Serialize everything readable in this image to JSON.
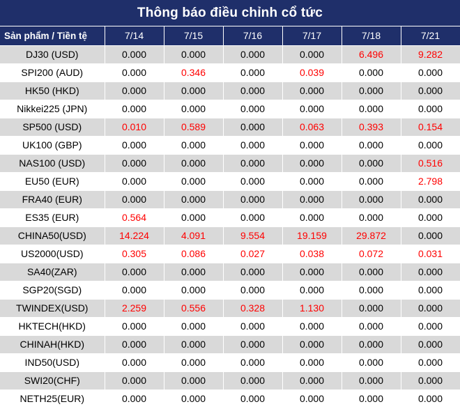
{
  "title": "Thông báo điều chỉnh cổ tức",
  "header": {
    "product_label": "Sản phẩm / Tiền tệ",
    "dates": [
      "7/14",
      "7/15",
      "7/16",
      "7/17",
      "7/18",
      "7/21"
    ]
  },
  "colors": {
    "header_bg": "#1f2f6a",
    "positive": "#ff0000",
    "stripe": "#d9d9d9"
  },
  "rows": [
    {
      "product": "DJ30 (USD)",
      "values": [
        "0.000",
        "0.000",
        "0.000",
        "0.000",
        "6.496",
        "9.282"
      ]
    },
    {
      "product": "SPI200 (AUD)",
      "values": [
        "0.000",
        "0.346",
        "0.000",
        "0.039",
        "0.000",
        "0.000"
      ]
    },
    {
      "product": "HK50 (HKD)",
      "values": [
        "0.000",
        "0.000",
        "0.000",
        "0.000",
        "0.000",
        "0.000"
      ]
    },
    {
      "product": "Nikkei225 (JPN)",
      "values": [
        "0.000",
        "0.000",
        "0.000",
        "0.000",
        "0.000",
        "0.000"
      ]
    },
    {
      "product": "SP500 (USD)",
      "values": [
        "0.010",
        "0.589",
        "0.000",
        "0.063",
        "0.393",
        "0.154"
      ]
    },
    {
      "product": "UK100 (GBP)",
      "values": [
        "0.000",
        "0.000",
        "0.000",
        "0.000",
        "0.000",
        "0.000"
      ]
    },
    {
      "product": "NAS100 (USD)",
      "values": [
        "0.000",
        "0.000",
        "0.000",
        "0.000",
        "0.000",
        "0.516"
      ]
    },
    {
      "product": "EU50 (EUR)",
      "values": [
        "0.000",
        "0.000",
        "0.000",
        "0.000",
        "0.000",
        "2.798"
      ]
    },
    {
      "product": "FRA40 (EUR)",
      "values": [
        "0.000",
        "0.000",
        "0.000",
        "0.000",
        "0.000",
        "0.000"
      ]
    },
    {
      "product": "ES35 (EUR)",
      "values": [
        "0.564",
        "0.000",
        "0.000",
        "0.000",
        "0.000",
        "0.000"
      ]
    },
    {
      "product": "CHINA50(USD)",
      "values": [
        "14.224",
        "4.091",
        "9.554",
        "19.159",
        "29.872",
        "0.000"
      ]
    },
    {
      "product": "US2000(USD)",
      "values": [
        "0.305",
        "0.086",
        "0.027",
        "0.038",
        "0.072",
        "0.031"
      ]
    },
    {
      "product": "SA40(ZAR)",
      "values": [
        "0.000",
        "0.000",
        "0.000",
        "0.000",
        "0.000",
        "0.000"
      ]
    },
    {
      "product": "SGP20(SGD)",
      "values": [
        "0.000",
        "0.000",
        "0.000",
        "0.000",
        "0.000",
        "0.000"
      ]
    },
    {
      "product": "TWINDEX(USD)",
      "values": [
        "2.259",
        "0.556",
        "0.328",
        "1.130",
        "0.000",
        "0.000"
      ]
    },
    {
      "product": "HKTECH(HKD)",
      "values": [
        "0.000",
        "0.000",
        "0.000",
        "0.000",
        "0.000",
        "0.000"
      ]
    },
    {
      "product": "CHINAH(HKD)",
      "values": [
        "0.000",
        "0.000",
        "0.000",
        "0.000",
        "0.000",
        "0.000"
      ]
    },
    {
      "product": "IND50(USD)",
      "values": [
        "0.000",
        "0.000",
        "0.000",
        "0.000",
        "0.000",
        "0.000"
      ]
    },
    {
      "product": "SWI20(CHF)",
      "values": [
        "0.000",
        "0.000",
        "0.000",
        "0.000",
        "0.000",
        "0.000"
      ]
    },
    {
      "product": "NETH25(EUR)",
      "values": [
        "0.000",
        "0.000",
        "0.000",
        "0.000",
        "0.000",
        "0.000"
      ]
    }
  ]
}
